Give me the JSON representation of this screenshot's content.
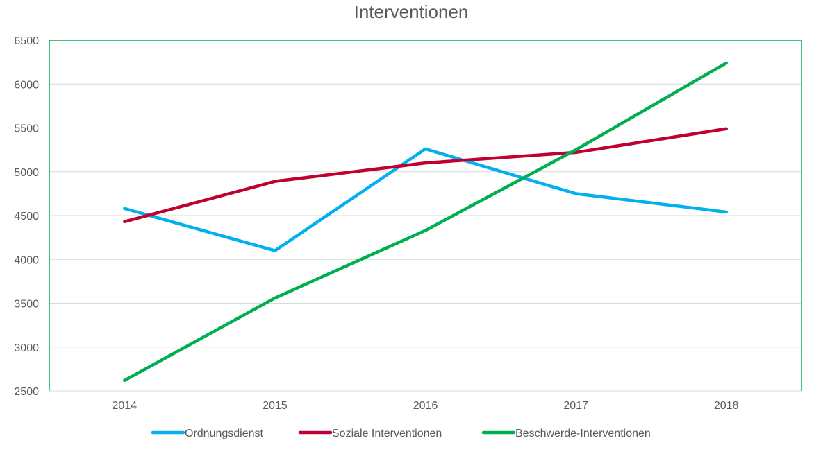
{
  "chart_data": {
    "type": "line",
    "title": "Interventionen",
    "xlabel": "",
    "ylabel": "",
    "categories": [
      "2014",
      "2015",
      "2016",
      "2017",
      "2018"
    ],
    "ylim": [
      2500,
      6500
    ],
    "yticks": [
      2500,
      3000,
      3500,
      4000,
      4500,
      5000,
      5500,
      6000,
      6500
    ],
    "grid": true,
    "legend_position": "bottom",
    "series": [
      {
        "name": "Ordnungsdienst",
        "color": "#00b0f0",
        "values": [
          4580,
          4100,
          5260,
          4750,
          4540
        ]
      },
      {
        "name": "Soziale Interventionen",
        "color": "#c00030",
        "values": [
          4430,
          4890,
          5100,
          5220,
          5490
        ]
      },
      {
        "name": "Beschwerde-Interventionen",
        "color": "#00b050",
        "values": [
          2620,
          3560,
          4330,
          5250,
          6240
        ]
      }
    ],
    "colors": {
      "frame": "#00b050",
      "grid": "#d9d9d9",
      "text": "#595959"
    }
  }
}
